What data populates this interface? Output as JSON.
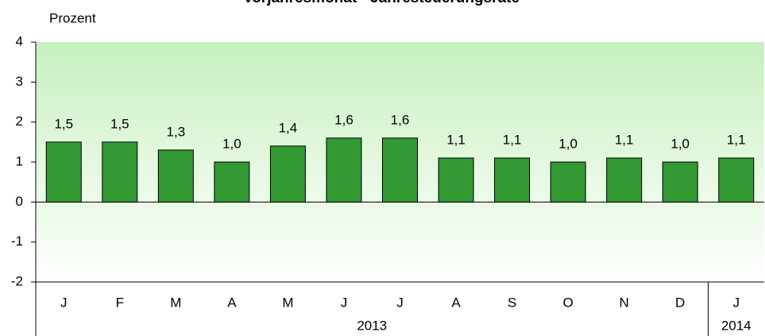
{
  "chart_data": {
    "type": "bar",
    "title": "Vorjahresmonat - Jahresteuerungsrate",
    "y_axis_label": "Prozent",
    "categories": [
      "J",
      "F",
      "M",
      "A",
      "M",
      "J",
      "J",
      "A",
      "S",
      "O",
      "N",
      "D",
      "J"
    ],
    "values": [
      1.5,
      1.5,
      1.3,
      1.0,
      1.4,
      1.6,
      1.6,
      1.1,
      1.1,
      1.0,
      1.1,
      1.0,
      1.1
    ],
    "value_labels": [
      "1,5",
      "1,5",
      "1,3",
      "1,0",
      "1,4",
      "1,6",
      "1,6",
      "1,1",
      "1,1",
      "1,0",
      "1,1",
      "1,0",
      "1,1"
    ],
    "groups": [
      {
        "label": "2013",
        "count": 12
      },
      {
        "label": "2014",
        "count": 1
      }
    ],
    "color": "#339933",
    "ylim": [
      -2,
      4
    ],
    "yticks": [
      -2,
      -1,
      0,
      1,
      2,
      3,
      4
    ]
  }
}
